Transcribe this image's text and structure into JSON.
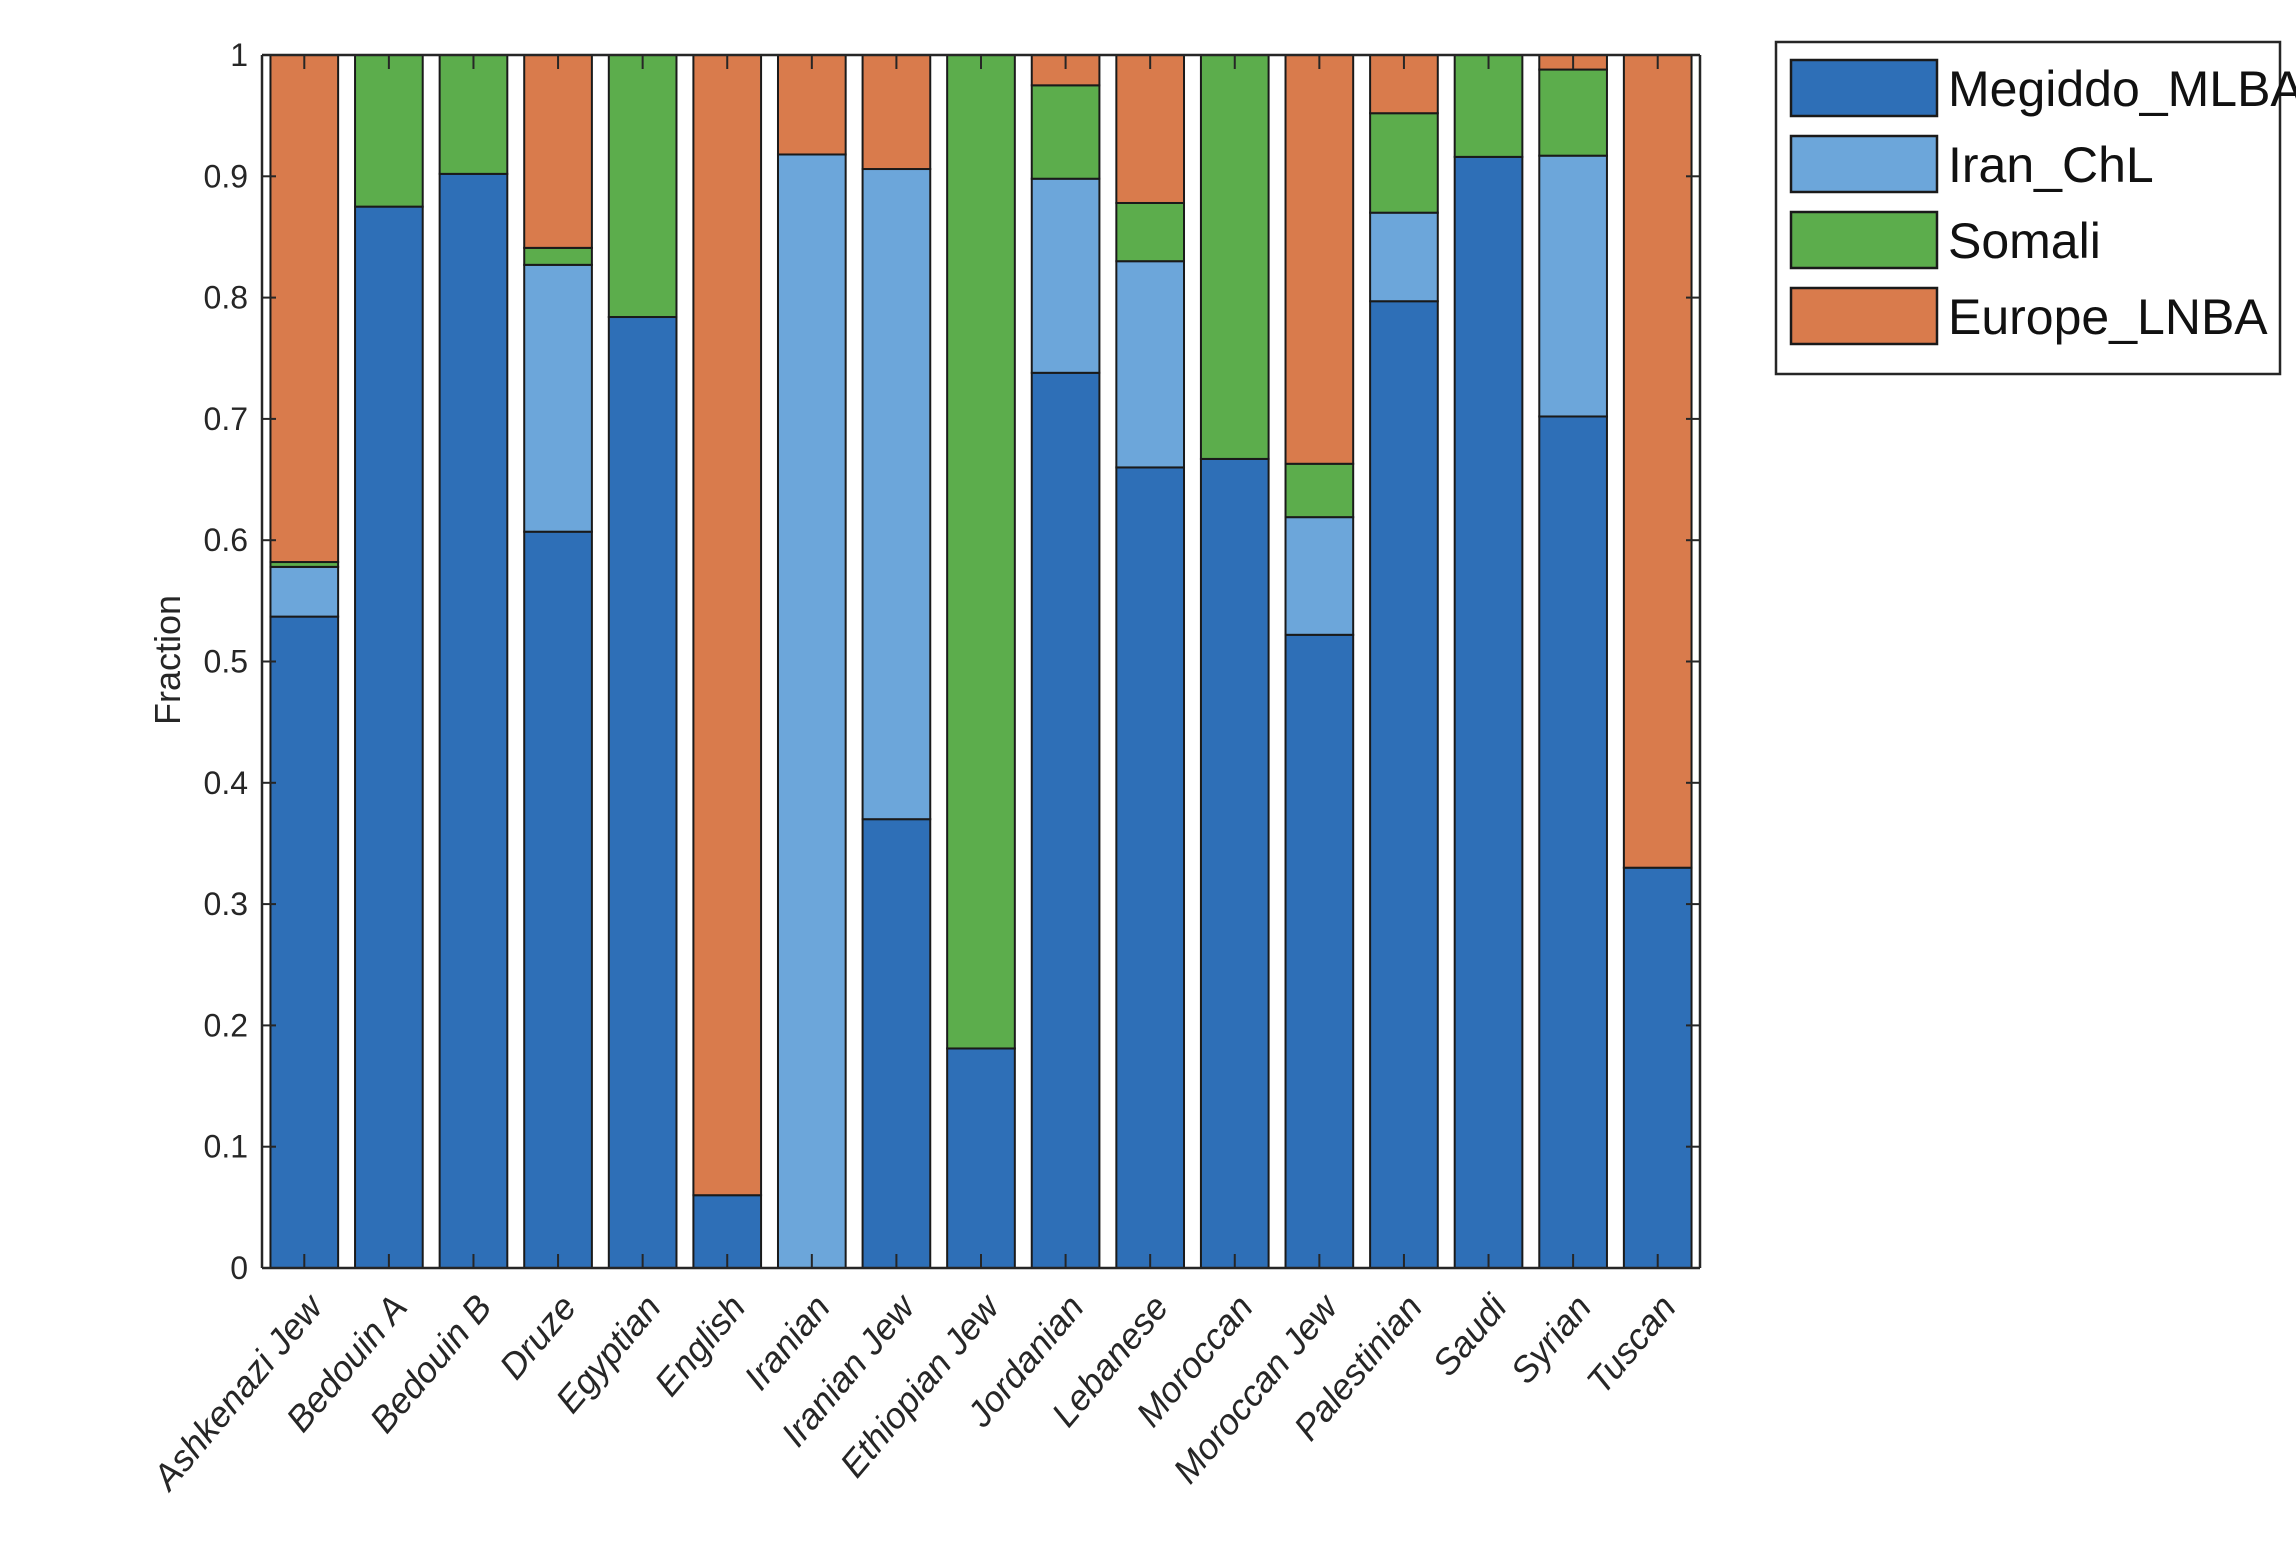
{
  "chart_data": {
    "type": "bar",
    "stacked": true,
    "title": "",
    "xlabel": "",
    "ylabel": "Fraction",
    "ylim": [
      0,
      1
    ],
    "yticks": [
      "0",
      "0.1",
      "0.2",
      "0.3",
      "0.4",
      "0.5",
      "0.6",
      "0.7",
      "0.8",
      "0.9",
      "1"
    ],
    "grid": false,
    "legend_position": "top-right-outside",
    "categories": [
      "Ashkenazi Jew",
      "Bedouin A",
      "Bedouin B",
      "Druze",
      "Egyptian",
      "English",
      "Iranian",
      "Iranian Jew",
      "Ethiopian Jew",
      "Jordanian",
      "Lebanese",
      "Moroccan",
      "Moroccan Jew",
      "Palestinian",
      "Saudi",
      "Syrian",
      "Tuscan"
    ],
    "series": [
      {
        "name": "Megiddo_MLBA",
        "color": "#2E6FB7",
        "values": [
          0.537,
          0.875,
          0.902,
          0.607,
          0.784,
          0.06,
          0.0,
          0.37,
          0.181,
          0.738,
          0.66,
          0.667,
          0.522,
          0.797,
          0.916,
          0.702,
          0.33
        ]
      },
      {
        "name": "Iran_ChL",
        "color": "#6CA6DA",
        "values": [
          0.041,
          0.0,
          0.0,
          0.22,
          0.0,
          0.0,
          0.918,
          0.536,
          0.0,
          0.16,
          0.17,
          0.0,
          0.097,
          0.073,
          0.0,
          0.215,
          0.0
        ]
      },
      {
        "name": "Somali",
        "color": "#5CAD4C",
        "values": [
          0.004,
          0.125,
          0.098,
          0.014,
          0.216,
          0.0,
          0.0,
          0.0,
          0.819,
          0.077,
          0.048,
          0.333,
          0.044,
          0.082,
          0.084,
          0.071,
          0.0
        ]
      },
      {
        "name": "Europe_LNBA",
        "color": "#D97B4C",
        "values": [
          0.418,
          0.0,
          0.0,
          0.159,
          0.0,
          0.94,
          0.082,
          0.094,
          0.0,
          0.025,
          0.122,
          0.0,
          0.337,
          0.048,
          0.0,
          0.012,
          0.67
        ]
      }
    ]
  }
}
